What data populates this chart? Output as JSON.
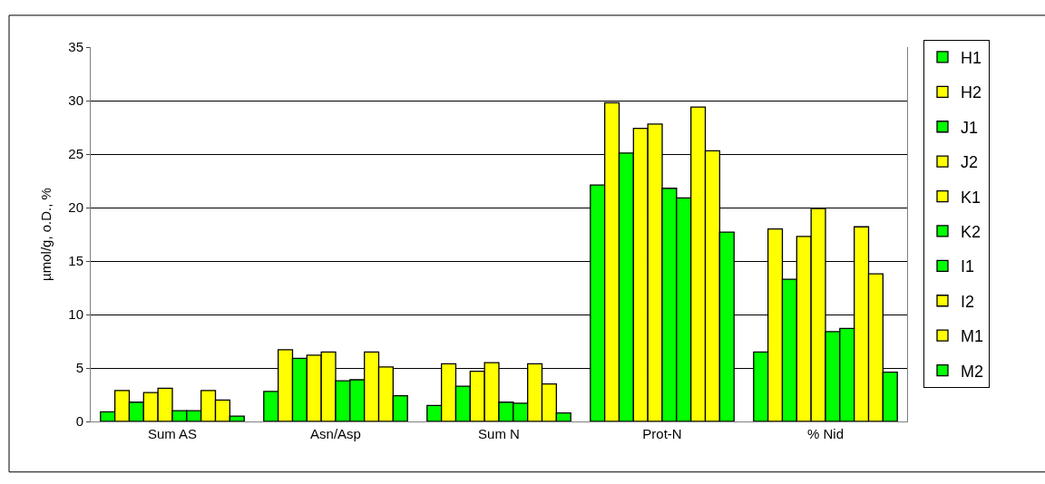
{
  "chart_data": {
    "type": "bar",
    "ylabel": "µmol/g, o.D., %",
    "categories": [
      "Sum AS",
      "Asn/Asp",
      "Sum N",
      "Prot-N",
      "% Nid"
    ],
    "ylim": [
      0,
      35
    ],
    "yticks": [
      0,
      5,
      10,
      15,
      20,
      25,
      30,
      35
    ],
    "grid": "y",
    "legend": "right",
    "series": [
      {
        "name": "H1",
        "color": "#00ff00",
        "values": [
          0.9,
          2.8,
          1.5,
          22.1,
          6.5
        ]
      },
      {
        "name": "H2",
        "color": "#ffff00",
        "values": [
          2.9,
          6.7,
          5.4,
          29.8,
          18.0
        ]
      },
      {
        "name": "J1",
        "color": "#00ff00",
        "values": [
          1.8,
          5.9,
          3.3,
          25.1,
          13.3
        ]
      },
      {
        "name": "J2",
        "color": "#ffff00",
        "values": [
          2.7,
          6.2,
          4.7,
          27.4,
          17.3
        ]
      },
      {
        "name": "K1",
        "color": "#ffff00",
        "values": [
          3.1,
          6.5,
          5.5,
          27.8,
          19.9
        ]
      },
      {
        "name": "K2",
        "color": "#00ff00",
        "values": [
          1.0,
          3.8,
          1.8,
          21.8,
          8.4
        ]
      },
      {
        "name": "I1",
        "color": "#00ff00",
        "values": [
          1.0,
          3.9,
          1.7,
          20.9,
          8.7
        ]
      },
      {
        "name": "I2",
        "color": "#ffff00",
        "values": [
          2.9,
          6.5,
          5.4,
          29.4,
          18.2
        ]
      },
      {
        "name": "M1",
        "color": "#ffff00",
        "values": [
          2.0,
          5.1,
          3.5,
          25.3,
          13.8
        ]
      },
      {
        "name": "M2",
        "color": "#00ff00",
        "values": [
          0.5,
          2.4,
          0.8,
          17.7,
          4.6
        ]
      }
    ]
  }
}
